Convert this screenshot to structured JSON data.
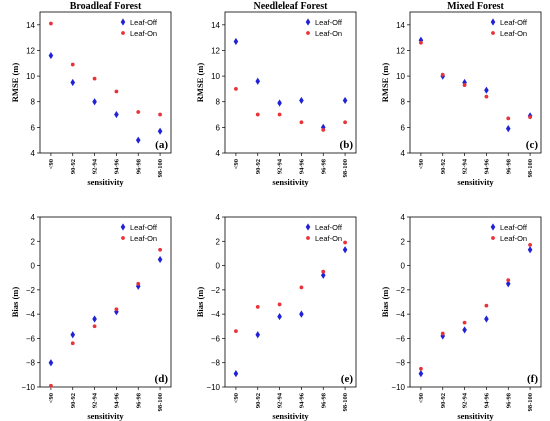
{
  "chart_data": [
    {
      "type": "scatter",
      "title": "Broadleaf Forest",
      "panel_label": "(a)",
      "xlabel": "sensitivity",
      "ylabel": "RMSE (m)",
      "categories": [
        "<90",
        "90-92",
        "92-94",
        "94-96",
        "96-98",
        "98-100"
      ],
      "ylim": [
        4,
        15
      ],
      "yticks": [
        4,
        6,
        8,
        10,
        12,
        14
      ],
      "legend": "top-right",
      "grid": false,
      "series": [
        {
          "name": "Leaf-Off",
          "marker": "diamond",
          "color": "#1f22d6",
          "values": [
            11.6,
            9.5,
            8.0,
            7.0,
            5.0,
            5.7
          ]
        },
        {
          "name": "Leaf-On",
          "marker": "dot",
          "color": "#e8333a",
          "values": [
            14.1,
            10.9,
            9.8,
            8.8,
            7.2,
            7.0
          ]
        }
      ]
    },
    {
      "type": "scatter",
      "title": "Needleleaf Forest",
      "panel_label": "(b)",
      "xlabel": "sensitivity",
      "ylabel": "RMSE (m)",
      "categories": [
        "<90",
        "90-92",
        "92-94",
        "94-96",
        "96-98",
        "98-100"
      ],
      "ylim": [
        4,
        15
      ],
      "yticks": [
        4,
        6,
        8,
        10,
        12,
        14
      ],
      "legend": "top-right",
      "grid": false,
      "series": [
        {
          "name": "Leaf-Off",
          "marker": "diamond",
          "color": "#1f22d6",
          "values": [
            12.7,
            9.6,
            7.9,
            8.1,
            6.0,
            8.1
          ]
        },
        {
          "name": "Leaf-On",
          "marker": "dot",
          "color": "#e8333a",
          "values": [
            9.0,
            7.0,
            7.0,
            6.4,
            5.8,
            6.4
          ]
        }
      ]
    },
    {
      "type": "scatter",
      "title": "Mixed Forest",
      "panel_label": "(c)",
      "xlabel": "sensitivity",
      "ylabel": "RMSE (m)",
      "categories": [
        "<90",
        "90-92",
        "92-94",
        "94-96",
        "96-98",
        "98-100"
      ],
      "ylim": [
        4,
        15
      ],
      "yticks": [
        4,
        6,
        8,
        10,
        12,
        14
      ],
      "legend": "top-right",
      "grid": false,
      "series": [
        {
          "name": "Leaf-Off",
          "marker": "diamond",
          "color": "#1f22d6",
          "values": [
            12.8,
            10.0,
            9.5,
            8.9,
            5.9,
            6.9
          ]
        },
        {
          "name": "Leaf-On",
          "marker": "dot",
          "color": "#e8333a",
          "values": [
            12.6,
            10.1,
            9.3,
            8.4,
            6.7,
            6.8
          ]
        }
      ]
    },
    {
      "type": "scatter",
      "title": "",
      "panel_label": "(d)",
      "xlabel": "sensitivity",
      "ylabel": "Bias (m)",
      "categories": [
        "<90",
        "90-92",
        "92-94",
        "94-96",
        "96-98",
        "98-100"
      ],
      "ylim": [
        -10,
        4
      ],
      "yticks": [
        -10,
        -8,
        -6,
        -4,
        -2,
        0,
        2,
        4
      ],
      "legend": "top-right",
      "grid": false,
      "series": [
        {
          "name": "Leaf-Off",
          "marker": "diamond",
          "color": "#1f22d6",
          "values": [
            -8.0,
            -5.7,
            -4.4,
            -3.8,
            -1.7,
            0.5
          ]
        },
        {
          "name": "Leaf-On",
          "marker": "dot",
          "color": "#e8333a",
          "values": [
            -9.9,
            -6.4,
            -5.0,
            -3.6,
            -1.5,
            1.3
          ]
        }
      ]
    },
    {
      "type": "scatter",
      "title": "",
      "panel_label": "(e)",
      "xlabel": "sensitivity",
      "ylabel": "Bias (m)",
      "categories": [
        "<90",
        "90-92",
        "92-94",
        "94-96",
        "96-98",
        "98-100"
      ],
      "ylim": [
        -10,
        4
      ],
      "yticks": [
        -10,
        -8,
        -6,
        -4,
        -2,
        0,
        2,
        4
      ],
      "legend": "top-right",
      "grid": false,
      "series": [
        {
          "name": "Leaf-Off",
          "marker": "diamond",
          "color": "#1f22d6",
          "values": [
            -8.9,
            -5.7,
            -4.2,
            -4.0,
            -0.8,
            1.3
          ]
        },
        {
          "name": "Leaf-On",
          "marker": "dot",
          "color": "#e8333a",
          "values": [
            -5.4,
            -3.4,
            -3.2,
            -1.8,
            -0.5,
            1.9
          ]
        }
      ]
    },
    {
      "type": "scatter",
      "title": "",
      "panel_label": "(f)",
      "xlabel": "sensitivity",
      "ylabel": "Bias (m)",
      "categories": [
        "<90",
        "90-92",
        "92-94",
        "94-96",
        "96-98",
        "98-100"
      ],
      "ylim": [
        -10,
        4
      ],
      "yticks": [
        -10,
        -8,
        -6,
        -4,
        -2,
        0,
        2,
        4
      ],
      "legend": "top-right",
      "grid": false,
      "series": [
        {
          "name": "Leaf-Off",
          "marker": "diamond",
          "color": "#1f22d6",
          "values": [
            -8.9,
            -5.8,
            -5.3,
            -4.4,
            -1.5,
            1.3
          ]
        },
        {
          "name": "Leaf-On",
          "marker": "dot",
          "color": "#e8333a",
          "values": [
            -8.5,
            -5.6,
            -4.7,
            -3.3,
            -1.2,
            1.7
          ]
        }
      ]
    }
  ]
}
